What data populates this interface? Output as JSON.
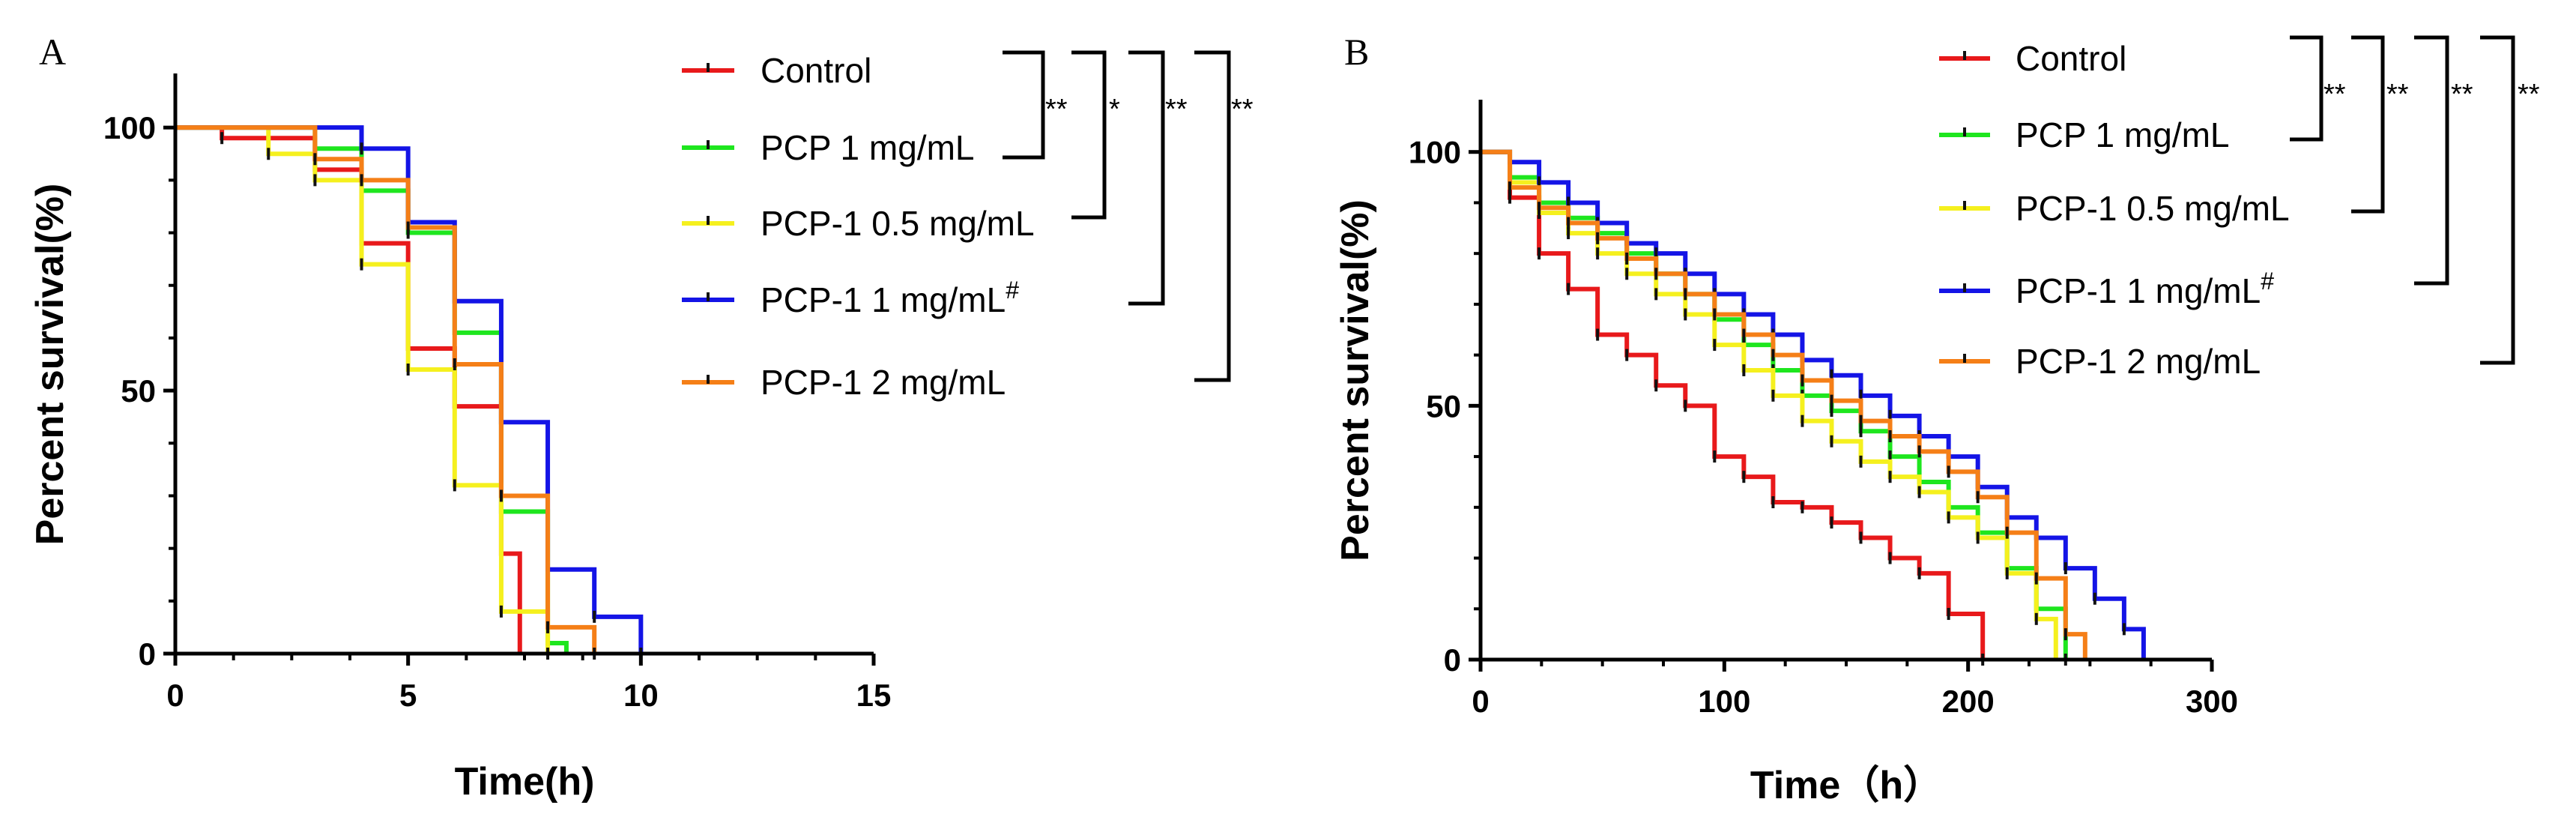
{
  "chart_data": [
    {
      "panel": "A",
      "type": "line",
      "subtype": "kaplan-meier step",
      "xlabel": "Time(h)",
      "ylabel": "Percent survival(%)",
      "xlim": [
        0,
        15
      ],
      "ylim": [
        0,
        110
      ],
      "xticks": [
        0,
        5,
        10,
        15
      ],
      "yticks": [
        0,
        50,
        100
      ],
      "series": [
        {
          "name": "Control",
          "color": "#e8191b",
          "censor_labels": [],
          "x": [
            0,
            1,
            3,
            4,
            5,
            6,
            7
          ],
          "y": [
            100,
            98,
            92,
            78,
            58,
            47,
            19
          ]
        },
        {
          "name": "PCP   1 mg/mL",
          "color": "#1ee61e",
          "censor_labels": [],
          "x": [
            0,
            3,
            4,
            5,
            6,
            7,
            8
          ],
          "y": [
            100,
            96,
            88,
            80,
            61,
            27,
            2
          ]
        },
        {
          "name": "PCP-1 0.5 mg/mL",
          "color": "#f5f01e",
          "censor_labels": [],
          "x": [
            0,
            2,
            3,
            4,
            5,
            6,
            7,
            8
          ],
          "y": [
            100,
            95,
            90,
            74,
            54,
            32,
            8,
            0
          ]
        },
        {
          "name": "PCP-1 1 mg/mL",
          "superscript": "#",
          "color": "#1414e6",
          "censor_labels": [],
          "x": [
            0,
            4,
            5,
            6,
            7,
            8,
            9,
            10
          ],
          "y": [
            100,
            96,
            82,
            67,
            44,
            16,
            7,
            0
          ]
        },
        {
          "name": "PCP-1 2 mg/mL",
          "color": "#f57f17",
          "censor_labels": [],
          "x": [
            0,
            3,
            4,
            5,
            6,
            7,
            8,
            9
          ],
          "y": [
            100,
            94,
            90,
            81,
            55,
            30,
            5,
            0
          ]
        }
      ],
      "significance": [
        "**",
        "*",
        "**",
        "**"
      ]
    },
    {
      "panel": "B",
      "type": "line",
      "subtype": "kaplan-meier step",
      "xlabel": "Time（h）",
      "ylabel": "Percent survival(%)",
      "xlim": [
        0,
        300
      ],
      "ylim": [
        0,
        110
      ],
      "xticks": [
        0,
        100,
        200,
        300
      ],
      "yticks": [
        0,
        50,
        100
      ],
      "series": [
        {
          "name": "Control",
          "color": "#e8191b",
          "x": [
            0,
            12,
            24,
            36,
            48,
            60,
            72,
            84,
            96,
            108,
            120,
            132,
            144,
            156,
            168,
            180,
            192,
            206
          ],
          "y": [
            100,
            91,
            80,
            73,
            64,
            60,
            54,
            50,
            40,
            36,
            31,
            30,
            27,
            24,
            20,
            17,
            9,
            0
          ]
        },
        {
          "name": "PCP   1 mg/mL",
          "color": "#1ee61e",
          "x": [
            0,
            12,
            24,
            36,
            48,
            60,
            72,
            84,
            96,
            108,
            120,
            132,
            144,
            156,
            168,
            180,
            192,
            204,
            216,
            228,
            240
          ],
          "y": [
            100,
            95,
            90,
            87,
            84,
            80,
            76,
            72,
            67,
            62,
            57,
            52,
            49,
            45,
            40,
            35,
            30,
            25,
            18,
            10,
            0
          ]
        },
        {
          "name": "PCP-1 0.5 mg/mL",
          "color": "#f5f01e",
          "x": [
            0,
            12,
            24,
            36,
            48,
            60,
            72,
            84,
            96,
            108,
            120,
            132,
            144,
            156,
            168,
            180,
            192,
            204,
            216,
            228
          ],
          "y": [
            100,
            94,
            88,
            84,
            80,
            76,
            72,
            68,
            62,
            57,
            52,
            47,
            43,
            39,
            36,
            33,
            28,
            24,
            17,
            8
          ]
        },
        {
          "name": "PCP-1 1 mg/mL",
          "superscript": "#",
          "color": "#1414e6",
          "x": [
            0,
            12,
            24,
            36,
            48,
            60,
            72,
            84,
            96,
            108,
            120,
            132,
            144,
            156,
            168,
            180,
            192,
            204,
            216,
            228,
            240,
            252,
            264
          ],
          "y": [
            100,
            98,
            94,
            90,
            86,
            82,
            80,
            76,
            72,
            68,
            64,
            59,
            56,
            52,
            48,
            44,
            40,
            34,
            28,
            24,
            18,
            12,
            6
          ]
        },
        {
          "name": "PCP-1 2 mg/mL",
          "color": "#f57f17",
          "x": [
            0,
            12,
            24,
            36,
            48,
            60,
            72,
            84,
            96,
            108,
            120,
            132,
            144,
            156,
            168,
            180,
            192,
            204,
            216,
            228,
            240
          ],
          "y": [
            100,
            93,
            89,
            86,
            83,
            79,
            76,
            72,
            68,
            64,
            60,
            55,
            51,
            47,
            44,
            41,
            37,
            32,
            25,
            16,
            5
          ]
        }
      ],
      "significance": [
        "**",
        "**",
        "**",
        "**"
      ]
    }
  ]
}
